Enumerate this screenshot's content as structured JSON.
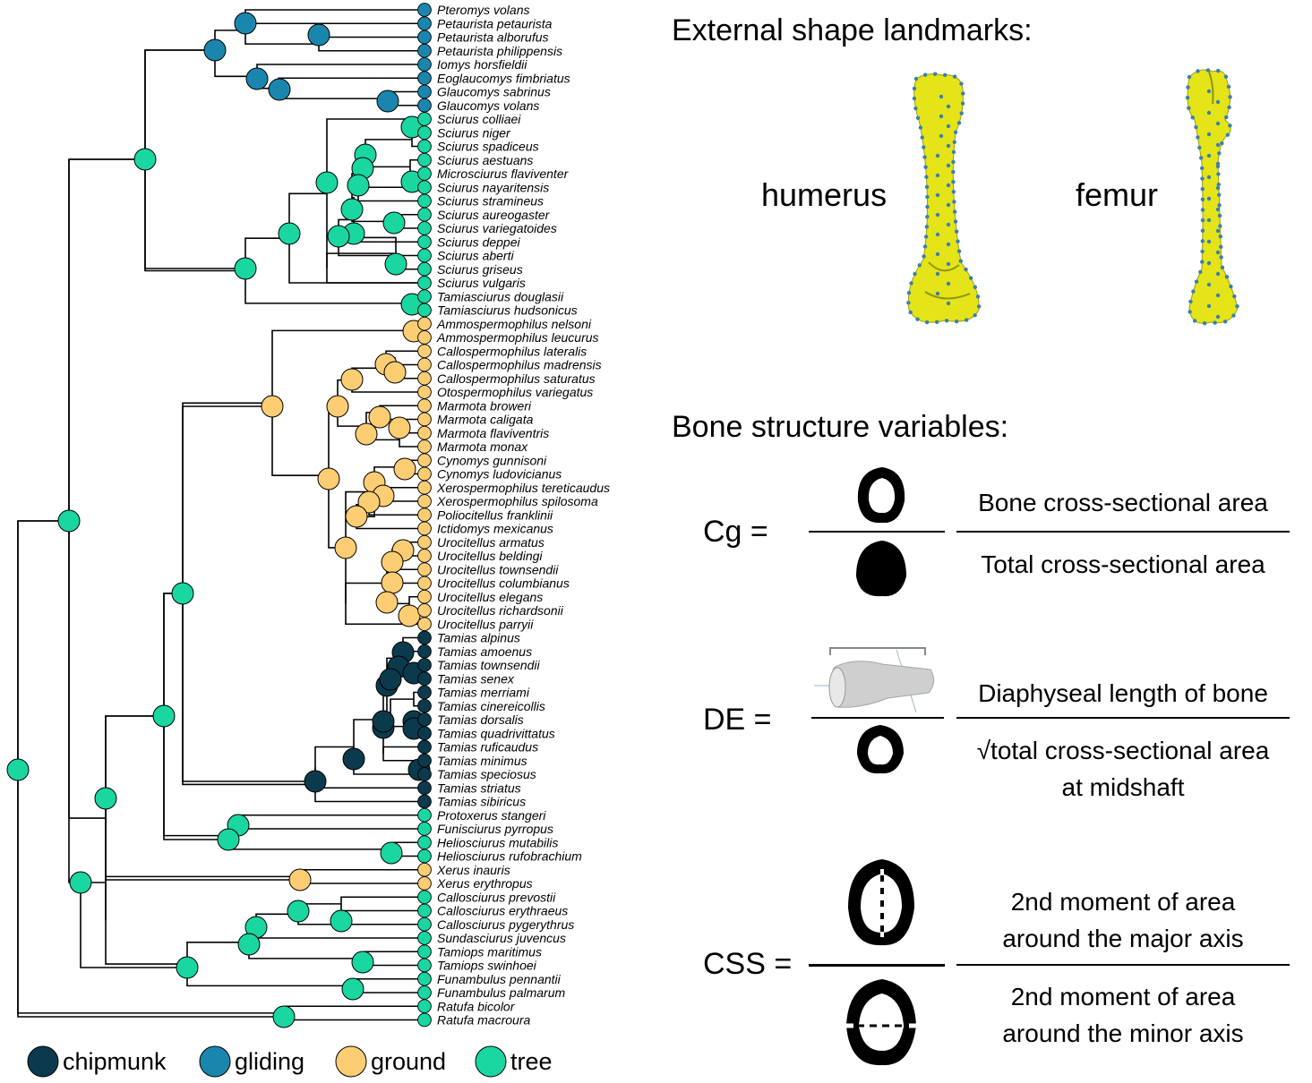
{
  "colors": {
    "chipmunk": "#0b3a4d",
    "gliding": "#1b86ad",
    "ground": "#fccd72",
    "tree": "#1ad6a0",
    "bone_surface": "#e4e418",
    "landmark": "#3a7fb0"
  },
  "tips": [
    {
      "name": "Pteromys volans",
      "state": "gliding"
    },
    {
      "name": "Petaurista petaurista",
      "state": "gliding"
    },
    {
      "name": "Petaurista alborufus",
      "state": "gliding"
    },
    {
      "name": "Petaurista philippensis",
      "state": "gliding"
    },
    {
      "name": "Iomys horsfieldii",
      "state": "gliding"
    },
    {
      "name": "Eoglaucomys fimbriatus",
      "state": "gliding"
    },
    {
      "name": "Glaucomys sabrinus",
      "state": "gliding"
    },
    {
      "name": "Glaucomys volans",
      "state": "gliding"
    },
    {
      "name": "Sciurus colliaei",
      "state": "tree"
    },
    {
      "name": "Sciurus niger",
      "state": "tree"
    },
    {
      "name": "Sciurus spadiceus",
      "state": "tree"
    },
    {
      "name": "Sciurus aestuans",
      "state": "tree"
    },
    {
      "name": "Microsciurus flaviventer",
      "state": "tree"
    },
    {
      "name": "Sciurus nayaritensis",
      "state": "tree"
    },
    {
      "name": "Sciurus stramineus",
      "state": "tree"
    },
    {
      "name": "Sciurus aureogaster",
      "state": "tree"
    },
    {
      "name": "Sciurus variegatoides",
      "state": "tree"
    },
    {
      "name": "Sciurus deppei",
      "state": "tree"
    },
    {
      "name": "Sciurus aberti",
      "state": "tree"
    },
    {
      "name": "Sciurus griseus",
      "state": "tree"
    },
    {
      "name": "Sciurus vulgaris",
      "state": "tree"
    },
    {
      "name": "Tamiasciurus douglasii",
      "state": "tree"
    },
    {
      "name": "Tamiasciurus hudsonicus",
      "state": "tree"
    },
    {
      "name": "Ammospermophilus nelsoni",
      "state": "ground"
    },
    {
      "name": "Ammospermophilus leucurus",
      "state": "ground"
    },
    {
      "name": "Callospermophilus lateralis",
      "state": "ground"
    },
    {
      "name": "Callospermophilus madrensis",
      "state": "ground"
    },
    {
      "name": "Callospermophilus saturatus",
      "state": "ground"
    },
    {
      "name": "Otospermophilus variegatus",
      "state": "ground"
    },
    {
      "name": "Marmota broweri",
      "state": "ground"
    },
    {
      "name": "Marmota caligata",
      "state": "ground"
    },
    {
      "name": "Marmota flaviventris",
      "state": "ground"
    },
    {
      "name": "Marmota monax",
      "state": "ground"
    },
    {
      "name": "Cynomys gunnisoni",
      "state": "ground"
    },
    {
      "name": "Cynomys ludovicianus",
      "state": "ground"
    },
    {
      "name": "Xerospermophilus tereticaudus",
      "state": "ground"
    },
    {
      "name": "Xerospermophilus spilosoma",
      "state": "ground"
    },
    {
      "name": "Poliocitellus franklinii",
      "state": "ground"
    },
    {
      "name": "Ictidomys mexicanus",
      "state": "ground"
    },
    {
      "name": "Urocitellus armatus",
      "state": "ground"
    },
    {
      "name": "Urocitellus beldingi",
      "state": "ground"
    },
    {
      "name": "Urocitellus townsendii",
      "state": "ground"
    },
    {
      "name": "Urocitellus columbianus",
      "state": "ground"
    },
    {
      "name": "Urocitellus elegans",
      "state": "ground"
    },
    {
      "name": "Urocitellus richardsonii",
      "state": "ground"
    },
    {
      "name": "Urocitellus parryii",
      "state": "ground"
    },
    {
      "name": "Tamias alpinus",
      "state": "chipmunk"
    },
    {
      "name": "Tamias amoenus",
      "state": "chipmunk"
    },
    {
      "name": "Tamias townsendii",
      "state": "chipmunk"
    },
    {
      "name": "Tamias senex",
      "state": "chipmunk"
    },
    {
      "name": "Tamias merriami",
      "state": "chipmunk"
    },
    {
      "name": "Tamias cinereicollis",
      "state": "chipmunk"
    },
    {
      "name": "Tamias dorsalis",
      "state": "chipmunk"
    },
    {
      "name": "Tamias quadrivittatus",
      "state": "chipmunk"
    },
    {
      "name": "Tamias ruficaudus",
      "state": "chipmunk"
    },
    {
      "name": "Tamias minimus",
      "state": "chipmunk"
    },
    {
      "name": "Tamias speciosus",
      "state": "chipmunk"
    },
    {
      "name": "Tamias striatus",
      "state": "chipmunk"
    },
    {
      "name": "Tamias sibiricus",
      "state": "chipmunk"
    },
    {
      "name": "Protoxerus stangeri",
      "state": "tree"
    },
    {
      "name": "Funisciurus pyrropus",
      "state": "tree"
    },
    {
      "name": "Heliosciurus mutabilis",
      "state": "tree"
    },
    {
      "name": "Heliosciurus rufobrachium",
      "state": "tree"
    },
    {
      "name": "Xerus inauris",
      "state": "ground"
    },
    {
      "name": "Xerus erythropus",
      "state": "ground"
    },
    {
      "name": "Callosciurus prevostii",
      "state": "tree"
    },
    {
      "name": "Callosciurus erythraeus",
      "state": "tree"
    },
    {
      "name": "Callosciurus pygerythrus",
      "state": "tree"
    },
    {
      "name": "Sundasciurus juvencus",
      "state": "tree"
    },
    {
      "name": "Tamiops maritimus",
      "state": "tree"
    },
    {
      "name": "Tamiops swinhoei",
      "state": "tree"
    },
    {
      "name": "Funambulus pennantii",
      "state": "tree"
    },
    {
      "name": "Funambulus palmarum",
      "state": "tree"
    },
    {
      "name": "Ratufa bicolor",
      "state": "tree"
    },
    {
      "name": "Ratufa macroura",
      "state": "tree"
    }
  ],
  "legend": [
    {
      "label": "chipmunk",
      "state": "chipmunk"
    },
    {
      "label": "gliding",
      "state": "gliding"
    },
    {
      "label": "ground",
      "state": "ground"
    },
    {
      "label": "tree",
      "state": "tree"
    }
  ],
  "landmarks": {
    "heading": "External shape landmarks:",
    "humerus_label": "humerus",
    "femur_label": "femur"
  },
  "structure": {
    "heading": "Bone structure variables:",
    "cg": {
      "name": "Cg =",
      "numerator": "Bone cross-sectional area",
      "denominator": "Total cross-sectional area"
    },
    "de": {
      "name": "DE =",
      "numerator": "Diaphyseal length of bone",
      "denominator_line1": "√total cross-sectional area",
      "denominator_line2": "at midshaft"
    },
    "css": {
      "name": "CSS =",
      "numerator_line1": "2nd moment of area",
      "numerator_line2": "around the major axis",
      "denominator_line1": "2nd moment of area",
      "denominator_line2": "around the minor axis"
    }
  }
}
